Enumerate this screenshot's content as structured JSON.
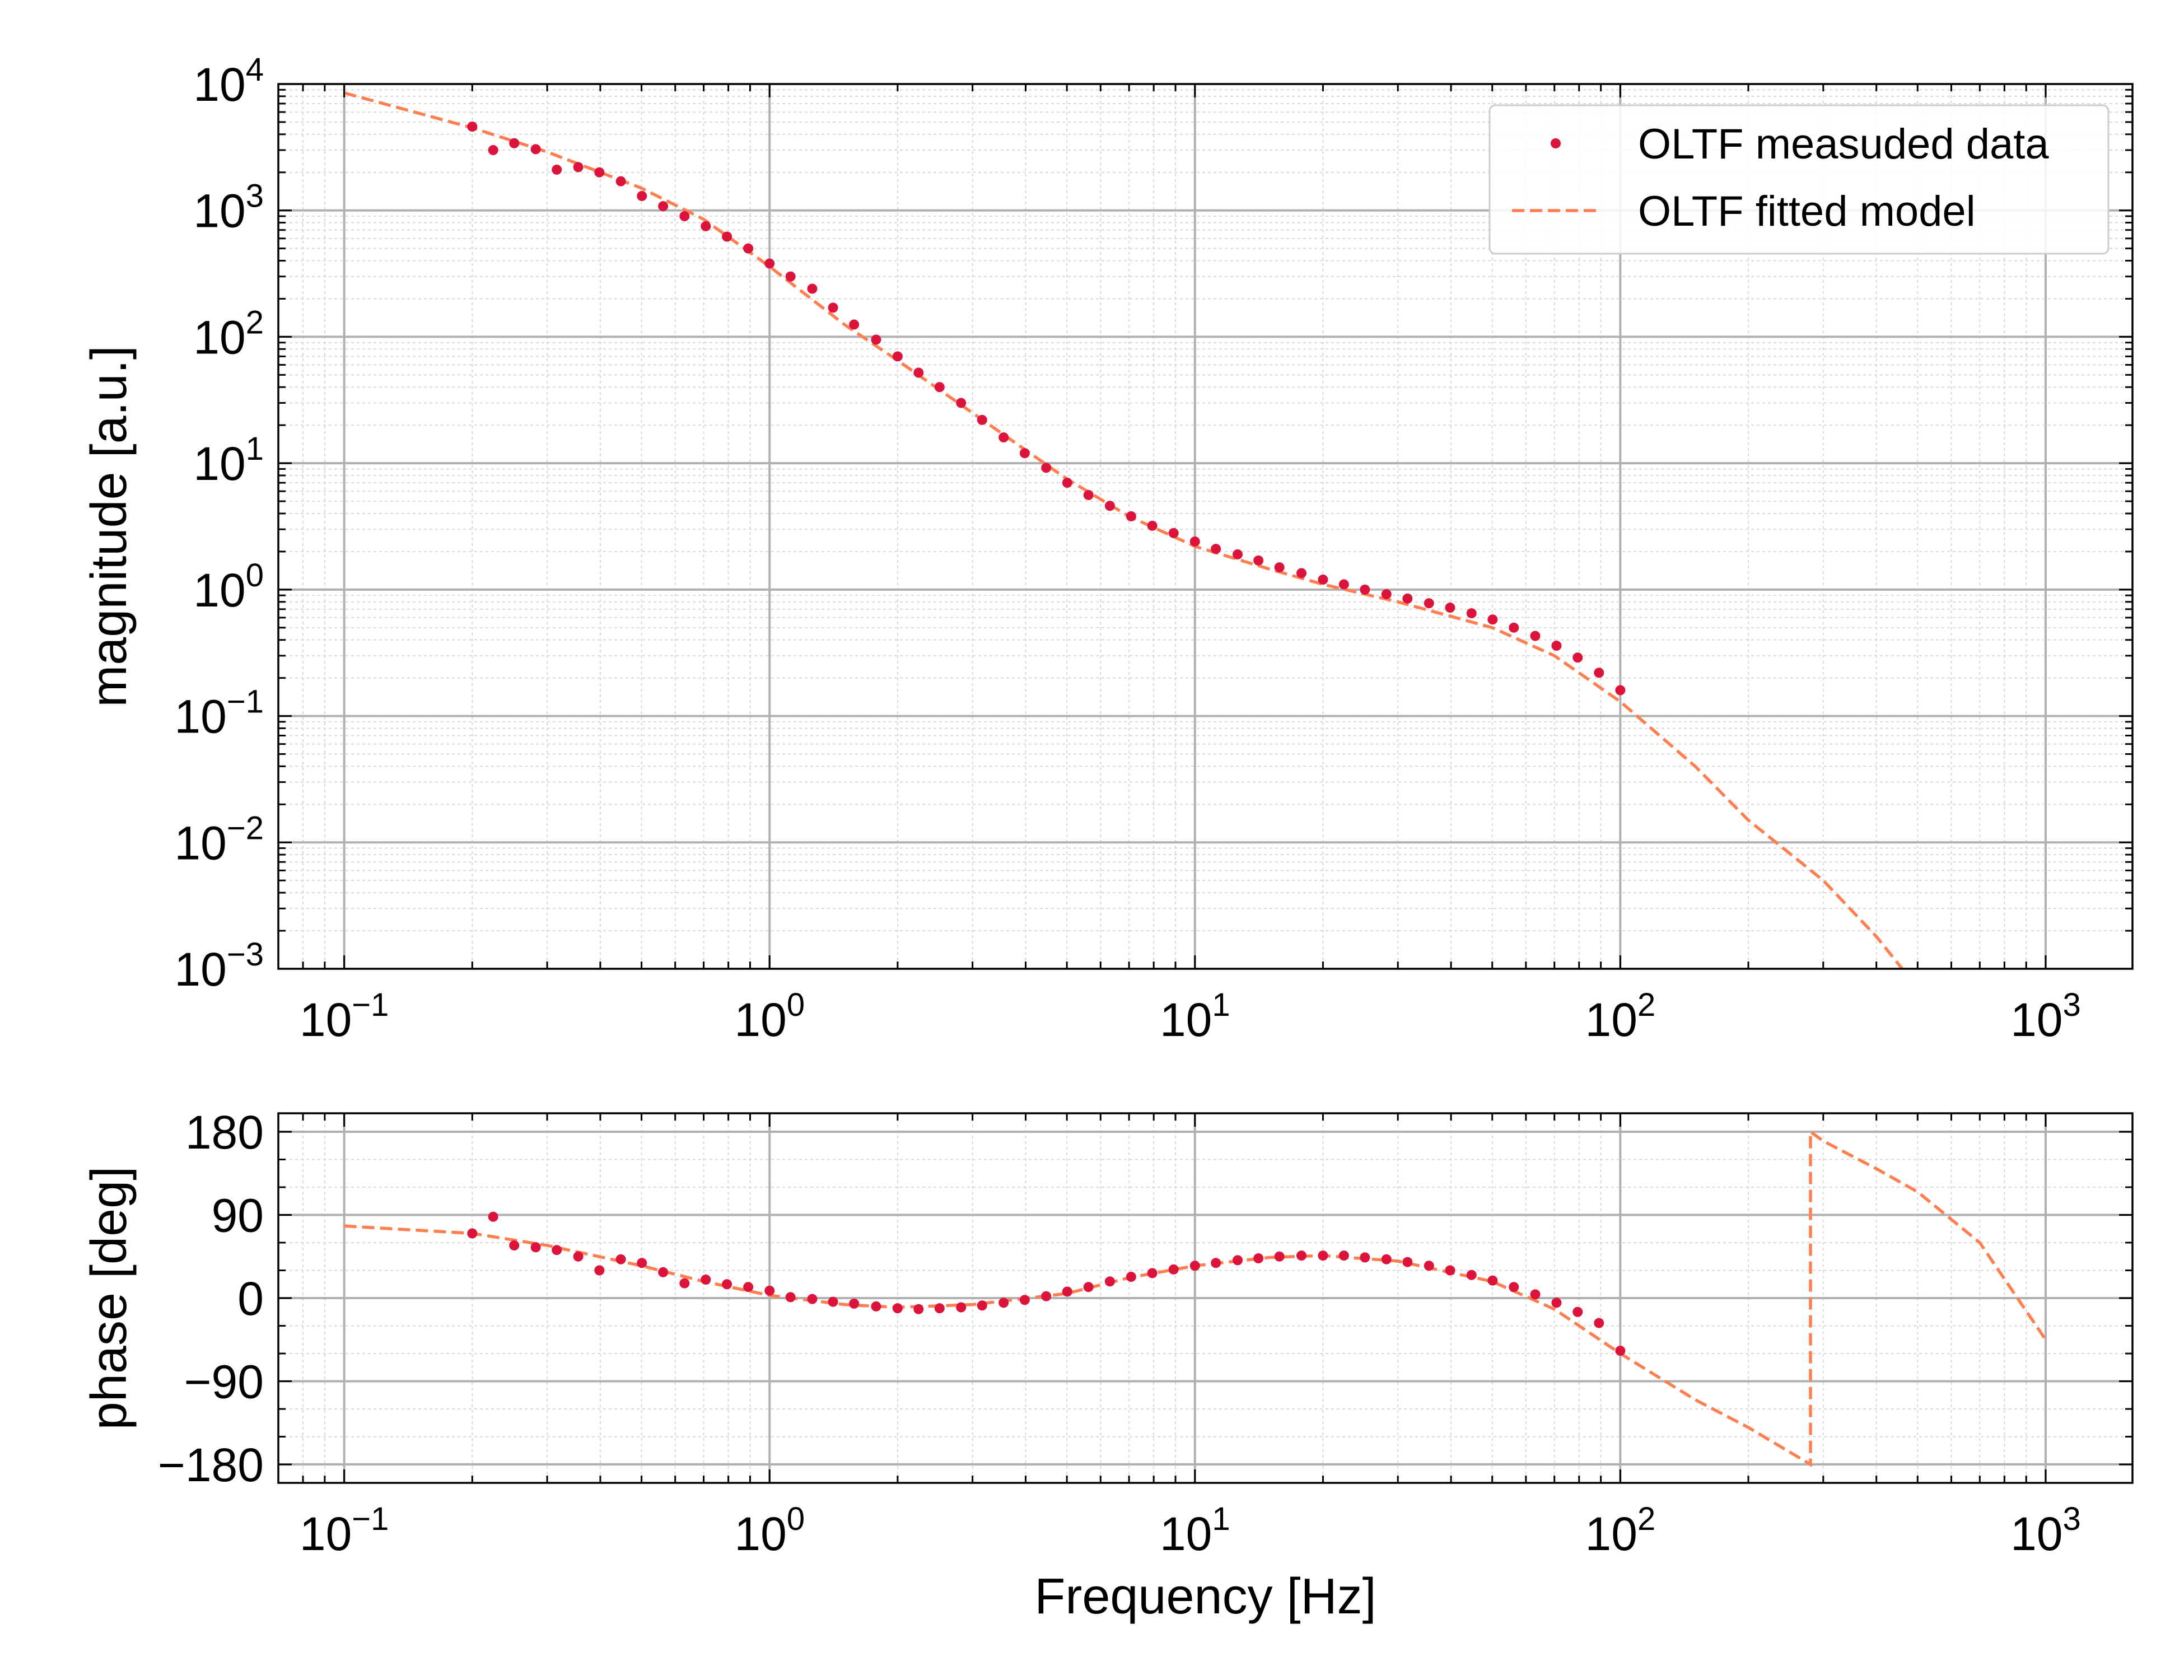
{
  "colors": {
    "data_points": "#dc143c",
    "model_line": "#ff7f50",
    "major_grid": "#b0b0b0",
    "minor_grid": "#d9d9d9",
    "axes": "#000000"
  },
  "chart_data": [
    {
      "type": "line",
      "panel": "magnitude",
      "xscale": "log",
      "yscale": "log",
      "xlim": [
        0.07,
        1600
      ],
      "ylim": [
        0.001,
        10000
      ],
      "xticks": [
        0.1,
        1,
        10,
        100,
        1000
      ],
      "yticks": [
        0.001,
        0.01,
        0.1,
        1,
        10,
        100,
        1000,
        10000
      ],
      "xtick_labels": [
        {
          "base": "10",
          "exp": "−1"
        },
        {
          "base": "10",
          "exp": "0"
        },
        {
          "base": "10",
          "exp": "1"
        },
        {
          "base": "10",
          "exp": "2"
        },
        {
          "base": "10",
          "exp": "3"
        }
      ],
      "ytick_labels": [
        {
          "base": "10",
          "exp": "−3"
        },
        {
          "base": "10",
          "exp": "−2"
        },
        {
          "base": "10",
          "exp": "−1"
        },
        {
          "base": "10",
          "exp": "0"
        },
        {
          "base": "10",
          "exp": "1"
        },
        {
          "base": "10",
          "exp": "2"
        },
        {
          "base": "10",
          "exp": "3"
        },
        {
          "base": "10",
          "exp": "4"
        }
      ],
      "xlabel": "",
      "ylabel": "magnitude [a.u.]",
      "grid": "major and minor",
      "legend": {
        "placement": "top-right",
        "entries": [
          {
            "label": "OLTF measuded data",
            "style": "points"
          },
          {
            "label": "OLTF fitted model",
            "style": "dashed-line"
          }
        ]
      },
      "series": [
        {
          "name": "OLTF fitted model",
          "style": "dashed-line",
          "x": [
            0.1,
            0.2,
            0.3,
            0.5,
            0.7,
            1,
            1.5,
            2,
            3,
            5,
            7,
            10,
            15,
            20,
            30,
            50,
            70,
            100,
            150,
            200,
            300,
            400,
            460
          ],
          "y": [
            8500,
            4500,
            2900,
            1500,
            850,
            360,
            125,
            65,
            25,
            7.5,
            3.8,
            2.2,
            1.45,
            1.1,
            0.8,
            0.5,
            0.3,
            0.13,
            0.04,
            0.015,
            0.005,
            0.0018,
            0.001
          ]
        },
        {
          "name": "OLTF measuded data",
          "style": "points",
          "x": [
            0.2,
            0.224,
            0.251,
            0.282,
            0.316,
            0.355,
            0.398,
            0.447,
            0.501,
            0.562,
            0.631,
            0.708,
            0.794,
            0.891,
            1,
            1.12,
            1.26,
            1.41,
            1.58,
            1.78,
            2,
            2.24,
            2.51,
            2.82,
            3.16,
            3.55,
            3.98,
            4.47,
            5.01,
            5.62,
            6.31,
            7.08,
            7.94,
            8.91,
            10,
            11.2,
            12.6,
            14.1,
            15.8,
            17.8,
            20,
            22.4,
            25.1,
            28.2,
            31.6,
            35.5,
            39.8,
            44.7,
            50.1,
            56.2,
            63.1,
            70.8,
            79.4,
            89.1,
            100
          ],
          "y": [
            4600,
            3000,
            3400,
            3050,
            2100,
            2200,
            2000,
            1700,
            1300,
            1080,
            900,
            750,
            620,
            500,
            380,
            300,
            240,
            170,
            125,
            95,
            70,
            52,
            40,
            30,
            22,
            16,
            12,
            9.2,
            7,
            5.6,
            4.6,
            3.8,
            3.2,
            2.8,
            2.4,
            2.1,
            1.9,
            1.7,
            1.5,
            1.35,
            1.2,
            1.1,
            1.0,
            0.92,
            0.85,
            0.78,
            0.72,
            0.65,
            0.58,
            0.5,
            0.43,
            0.36,
            0.29,
            0.22,
            0.16
          ]
        }
      ]
    },
    {
      "type": "line",
      "panel": "phase",
      "xscale": "log",
      "yscale": "linear",
      "xlim": [
        0.07,
        1600
      ],
      "ylim": [
        -200,
        200
      ],
      "xticks": [
        0.1,
        1,
        10,
        100,
        1000
      ],
      "yticks": [
        -180,
        -90,
        0,
        90,
        180
      ],
      "xtick_labels": [
        {
          "base": "10",
          "exp": "−1"
        },
        {
          "base": "10",
          "exp": "0"
        },
        {
          "base": "10",
          "exp": "1"
        },
        {
          "base": "10",
          "exp": "2"
        },
        {
          "base": "10",
          "exp": "3"
        }
      ],
      "ytick_labels": [
        "−180",
        "−90",
        "0",
        "90",
        "180"
      ],
      "xlabel": "Frequency [Hz]",
      "ylabel": "phase [deg]",
      "grid": "major and minor",
      "series": [
        {
          "name": "OLTF fitted model",
          "style": "dashed-line",
          "x": [
            0.1,
            0.2,
            0.3,
            0.5,
            0.7,
            1,
            1.5,
            2,
            3,
            5,
            7,
            10,
            15,
            20,
            30,
            50,
            70,
            100,
            150,
            200,
            280,
            280,
            300,
            400,
            500,
            700,
            1000
          ],
          "y": [
            78,
            70,
            57,
            35,
            18,
            3,
            -7,
            -10,
            -7,
            5,
            22,
            35,
            44,
            46,
            40,
            18,
            -12,
            -60,
            -110,
            -140,
            -180,
            180,
            170,
            140,
            115,
            60,
            -45
          ]
        },
        {
          "name": "OLTF measuded data",
          "style": "points",
          "x": [
            0.2,
            0.224,
            0.251,
            0.282,
            0.316,
            0.355,
            0.398,
            0.447,
            0.501,
            0.562,
            0.631,
            0.708,
            0.794,
            0.891,
            1,
            1.12,
            1.26,
            1.41,
            1.58,
            1.78,
            2,
            2.24,
            2.51,
            2.82,
            3.16,
            3.55,
            3.98,
            4.47,
            5.01,
            5.62,
            6.31,
            7.08,
            7.94,
            8.91,
            10,
            11.2,
            12.6,
            14.1,
            15.8,
            17.8,
            20,
            22.4,
            25.1,
            28.2,
            31.6,
            35.5,
            39.8,
            44.7,
            50.1,
            56.2,
            63.1,
            70.8,
            79.4,
            89.1,
            100
          ],
          "y": [
            70,
            88,
            57,
            55,
            52,
            45,
            30,
            42,
            38,
            28,
            16,
            20,
            15,
            12,
            8,
            1,
            -1,
            -4,
            -6,
            -9,
            -11,
            -12,
            -11,
            -10,
            -8,
            -5,
            -2,
            2,
            7,
            12,
            18,
            23,
            27,
            31,
            35,
            38,
            41,
            43,
            45,
            46,
            46,
            46,
            44,
            42,
            39,
            35,
            30,
            25,
            19,
            12,
            4,
            -5,
            -15,
            -27,
            -57
          ]
        }
      ]
    }
  ]
}
